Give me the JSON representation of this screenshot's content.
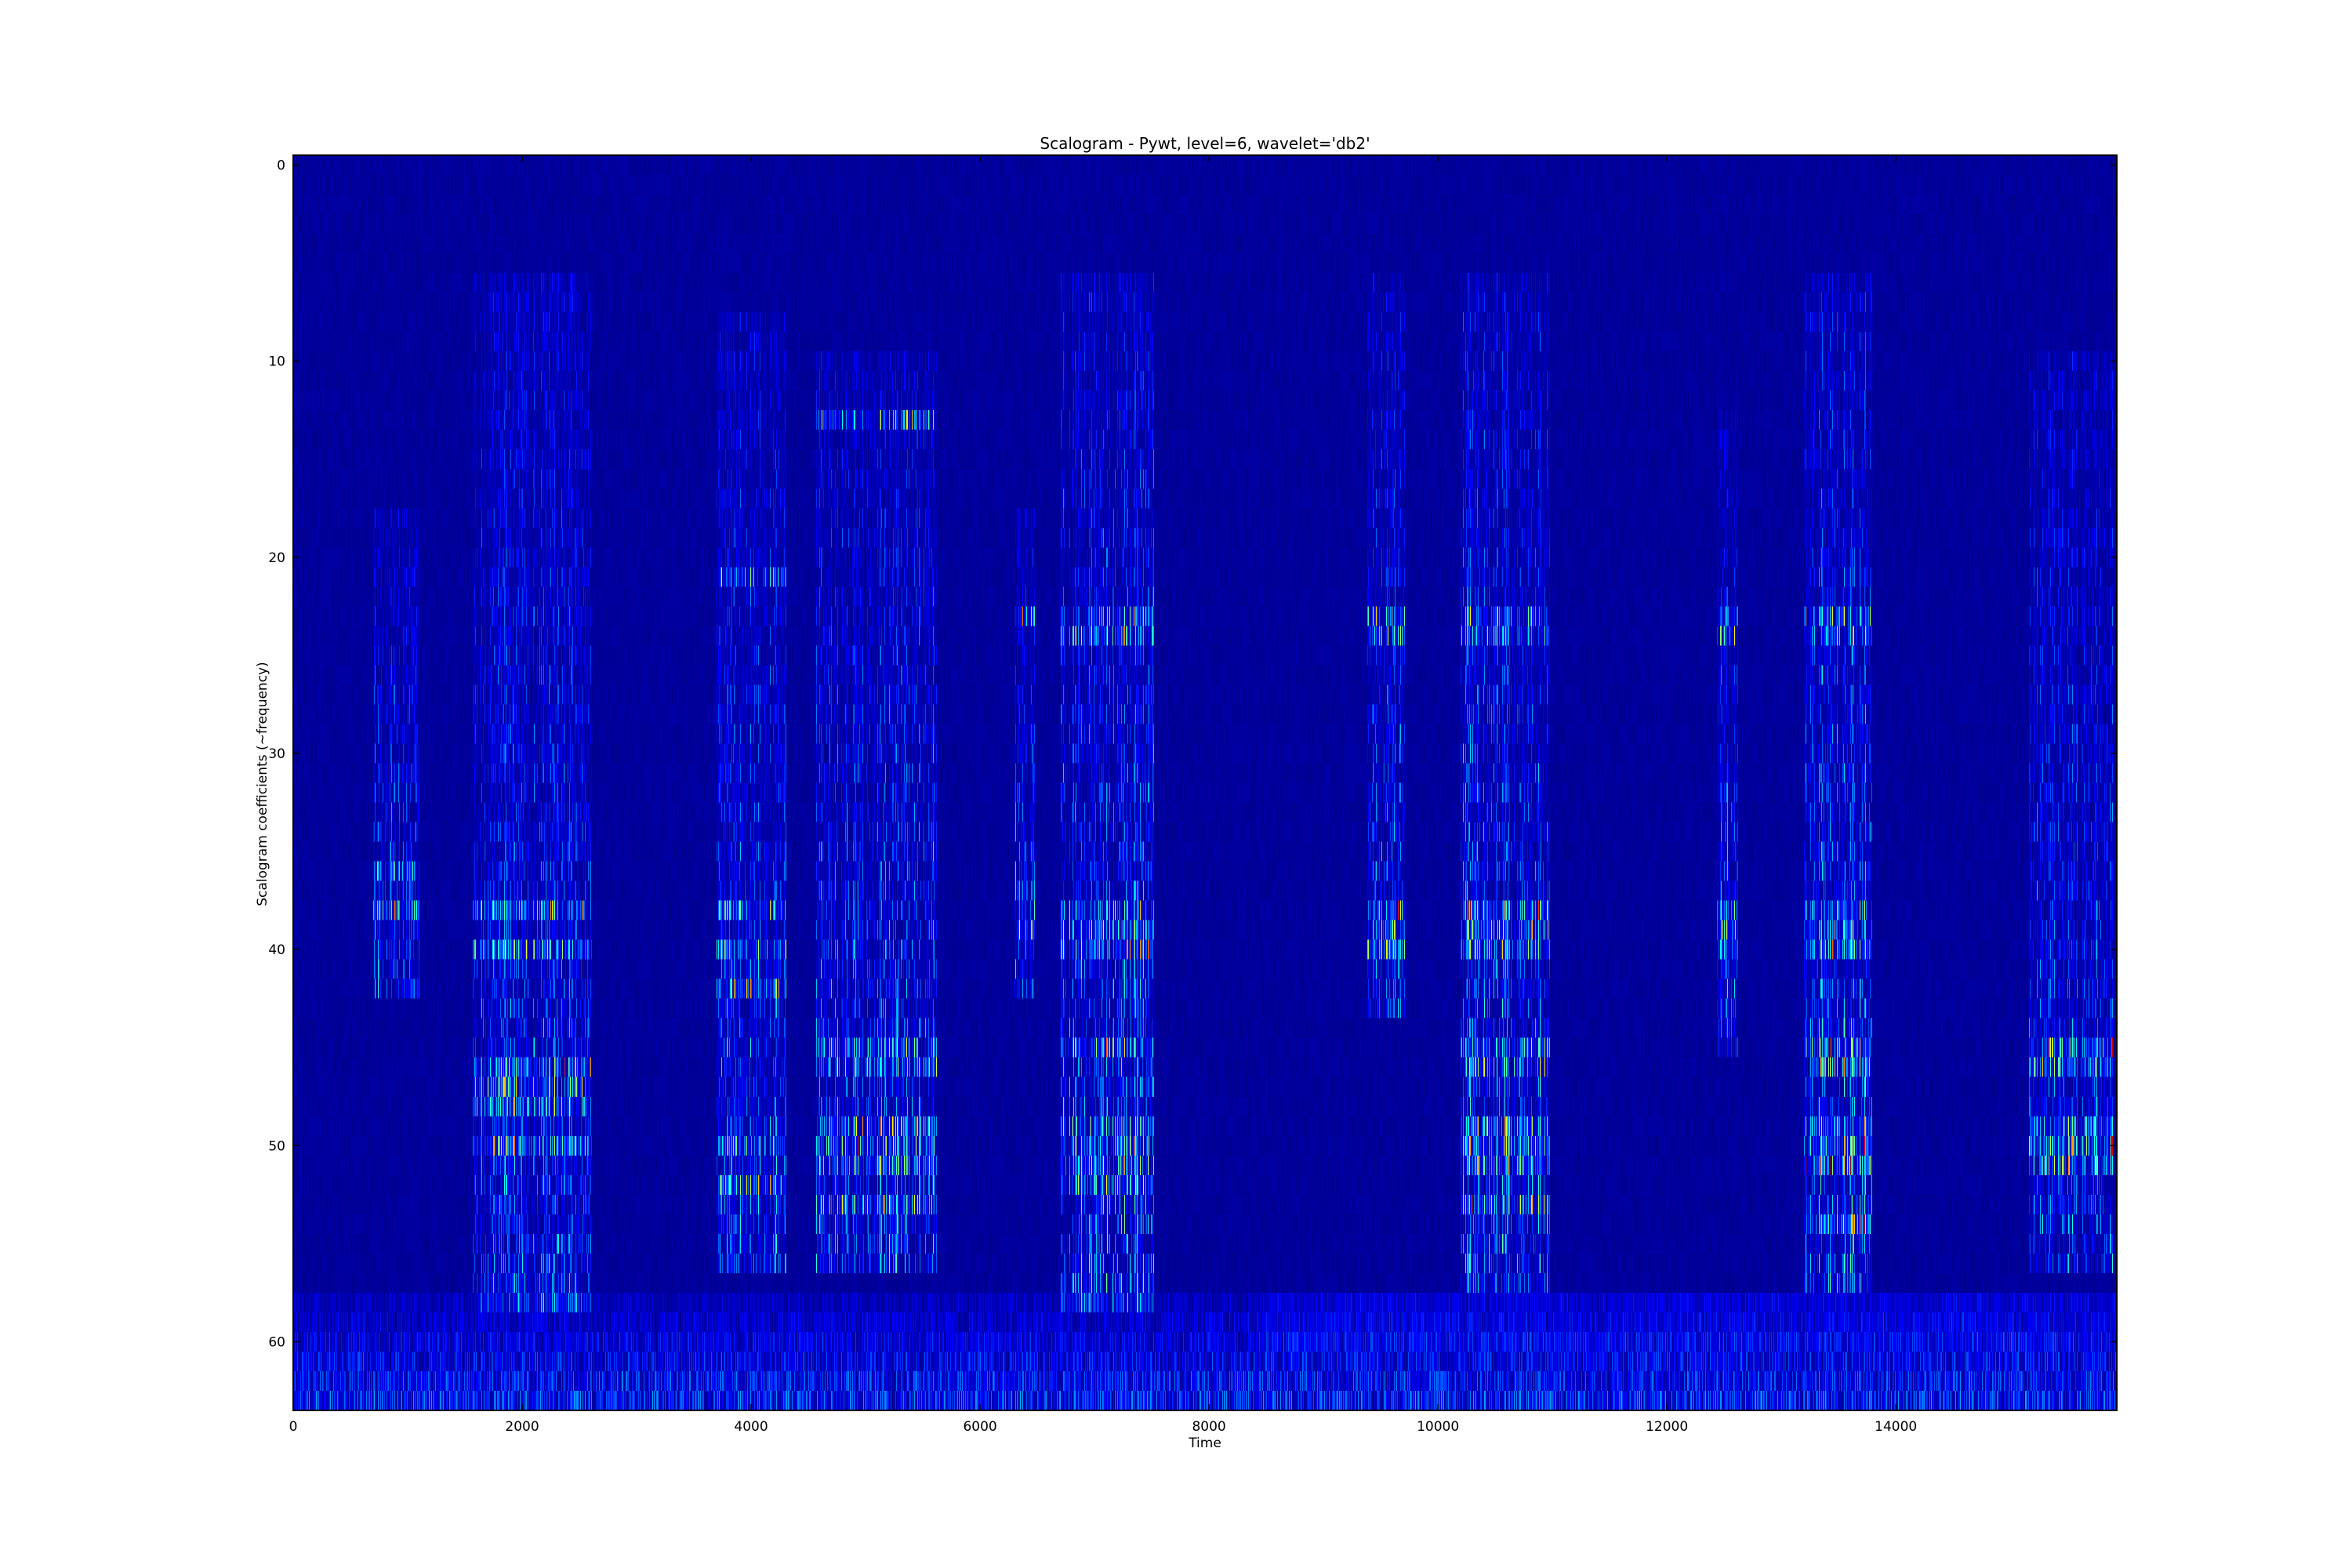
{
  "chart_data": {
    "type": "heatmap",
    "title": "Scalogram - Pywt, level=6, wavelet='db2'",
    "xlabel": "Time",
    "ylabel": "Scalogram coefficients (~frequency)",
    "colormap": "jet",
    "xlim": [
      0,
      15930
    ],
    "ylim": [
      63.5,
      -0.5
    ],
    "y_inverted": true,
    "rows": 64,
    "grid": false,
    "xticks": [
      0,
      2000,
      4000,
      6000,
      8000,
      10000,
      12000,
      14000
    ],
    "xtick_labels": [
      "0",
      "2000",
      "4000",
      "6000",
      "8000",
      "10000",
      "12000",
      "14000"
    ],
    "yticks": [
      0,
      10,
      20,
      30,
      40,
      50,
      60
    ],
    "ytick_labels": [
      "0",
      "10",
      "20",
      "30",
      "40",
      "50",
      "60"
    ],
    "background_level": 0.03,
    "bottom_band": {
      "rows": [
        58,
        63
      ],
      "level": 0.18
    },
    "bursts": [
      {
        "t": [
          700,
          1100
        ],
        "rows": [
          18,
          42
        ],
        "level": 0.22,
        "bright_rows": [
          36,
          38
        ]
      },
      {
        "t": [
          1570,
          2610
        ],
        "rows": [
          6,
          58
        ],
        "level": 0.25,
        "bright_rows": [
          38,
          40,
          46,
          47,
          48,
          50
        ]
      },
      {
        "t": [
          3700,
          4310
        ],
        "rows": [
          8,
          56
        ],
        "level": 0.25,
        "bright_rows": [
          21,
          38,
          40,
          42,
          50,
          52
        ]
      },
      {
        "t": [
          4570,
          5620
        ],
        "rows": [
          10,
          56
        ],
        "level": 0.27,
        "bright_rows": [
          13,
          45,
          46,
          49,
          50,
          51,
          53
        ]
      },
      {
        "t": [
          6300,
          6480
        ],
        "rows": [
          18,
          42
        ],
        "level": 0.25,
        "bright_rows": [
          23,
          38,
          39
        ]
      },
      {
        "t": [
          6700,
          7520
        ],
        "rows": [
          6,
          58
        ],
        "level": 0.3,
        "bright_rows": [
          23,
          24,
          38,
          39,
          40,
          45,
          49,
          50,
          51,
          52
        ]
      },
      {
        "t": [
          9380,
          9710
        ],
        "rows": [
          6,
          43
        ],
        "level": 0.24,
        "bright_rows": [
          23,
          24,
          38,
          39,
          40
        ]
      },
      {
        "t": [
          10200,
          10980
        ],
        "rows": [
          6,
          57
        ],
        "level": 0.3,
        "bright_rows": [
          23,
          24,
          38,
          39,
          40,
          45,
          46,
          49,
          50,
          51,
          53
        ]
      },
      {
        "t": [
          12440,
          12620
        ],
        "rows": [
          13,
          45
        ],
        "level": 0.24,
        "bright_rows": [
          23,
          24,
          38,
          39,
          40
        ]
      },
      {
        "t": [
          13200,
          13790
        ],
        "rows": [
          6,
          57
        ],
        "level": 0.3,
        "bright_rows": [
          23,
          24,
          38,
          39,
          40,
          45,
          46,
          49,
          50,
          51,
          54
        ]
      },
      {
        "t": [
          15160,
          15900
        ],
        "rows": [
          10,
          56
        ],
        "level": 0.24,
        "bright_rows": [
          45,
          46,
          49,
          50,
          51
        ]
      }
    ]
  }
}
